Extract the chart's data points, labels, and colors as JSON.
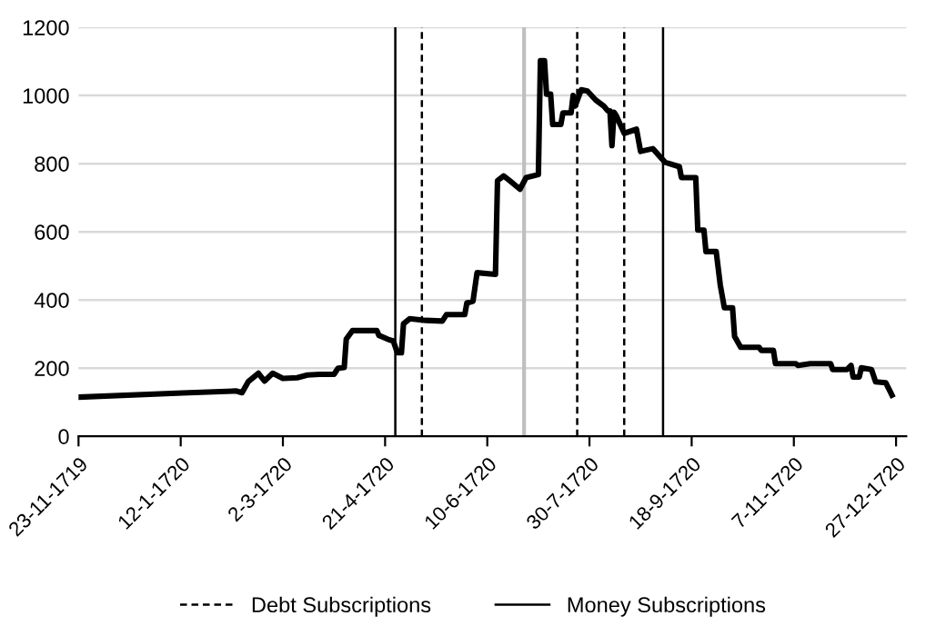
{
  "chart_data": {
    "type": "line",
    "x": [
      "1719-11-23",
      "1720-01-13",
      "1720-02-08",
      "1720-02-11",
      "1720-02-14",
      "1720-02-19",
      "1720-02-22",
      "1720-02-26",
      "1720-03-02",
      "1720-03-09",
      "1720-03-14",
      "1720-03-20",
      "1720-03-27",
      "1720-03-29",
      "1720-04-01",
      "1720-04-02",
      "1720-04-05",
      "1720-04-17",
      "1720-04-18",
      "1720-04-23",
      "1720-04-25",
      "1720-04-27",
      "1720-04-29",
      "1720-04-30",
      "1720-05-03",
      "1720-05-11",
      "1720-05-19",
      "1720-05-21",
      "1720-05-30",
      "1720-05-31",
      "1720-06-03",
      "1720-06-05",
      "1720-06-14",
      "1720-06-15",
      "1720-06-18",
      "1720-06-21",
      "1720-06-26",
      "1720-06-29",
      "1720-07-05",
      "1720-07-06",
      "1720-07-08",
      "1720-07-09",
      "1720-07-11",
      "1720-07-12",
      "1720-07-16",
      "1720-07-17",
      "1720-07-21",
      "1720-07-22",
      "1720-07-23",
      "1720-07-26",
      "1720-07-29",
      "1720-08-02",
      "1720-08-06",
      "1720-08-08",
      "1720-08-09",
      "1720-08-10",
      "1720-08-11",
      "1720-08-12",
      "1720-08-16",
      "1720-08-22",
      "1720-08-24",
      "1720-08-30",
      "1720-09-05",
      "1720-09-12",
      "1720-09-13",
      "1720-09-20",
      "1720-09-21",
      "1720-09-24",
      "1720-09-25",
      "1720-09-30",
      "1720-10-02",
      "1720-10-04",
      "1720-10-08",
      "1720-10-09",
      "1720-10-12",
      "1720-10-21",
      "1720-10-22",
      "1720-10-28",
      "1720-10-29",
      "1720-11-08",
      "1720-11-09",
      "1720-11-15",
      "1720-11-25",
      "1720-11-26",
      "1720-12-03",
      "1720-12-05",
      "1720-12-06",
      "1720-12-09",
      "1720-12-10",
      "1720-12-15",
      "1720-12-17",
      "1720-12-22",
      "1720-12-25"
    ],
    "series": [
      {
        "color": "#000000",
        "values": [
          115,
          127,
          133,
          128,
          160,
          185,
          162,
          185,
          170,
          172,
          180,
          182,
          182,
          200,
          202,
          285,
          310,
          310,
          296,
          283,
          280,
          245,
          245,
          330,
          345,
          340,
          338,
          357,
          357,
          391,
          396,
          480,
          475,
          750,
          764,
          750,
          725,
          759,
          768,
          1102,
          1102,
          1004,
          1004,
          915,
          915,
          949,
          949,
          1000,
          969,
          1017,
          1013,
          987,
          969,
          955,
          955,
          853,
          951,
          942,
          889,
          901,
          836,
          844,
          804,
          791,
          759,
          759,
          605,
          605,
          542,
          542,
          444,
          377,
          377,
          293,
          261,
          261,
          252,
          252,
          213,
          213,
          208,
          213,
          213,
          196,
          196,
          208,
          174,
          174,
          201,
          196,
          160,
          157,
          121
        ]
      }
    ],
    "xlim": [
      "1719-11-23",
      "1721-01-01"
    ],
    "xticks": [
      {
        "value": "1719-11-23",
        "label": "23-11-1719"
      },
      {
        "value": "1720-01-12",
        "label": "12-1-1720"
      },
      {
        "value": "1720-03-02",
        "label": "2-3-1720"
      },
      {
        "value": "1720-04-21",
        "label": "21-4-1720"
      },
      {
        "value": "1720-06-10",
        "label": "10-6-1720"
      },
      {
        "value": "1720-07-30",
        "label": "30-7-1720"
      },
      {
        "value": "1720-09-18",
        "label": "18-9-1720"
      },
      {
        "value": "1720-11-07",
        "label": "7-11-1720"
      },
      {
        "value": "1720-12-27",
        "label": "27-12-1720"
      }
    ],
    "ylim": [
      0,
      1200
    ],
    "yticks": [
      0,
      200,
      400,
      600,
      800,
      1000,
      1200
    ],
    "grid": "y",
    "legend": "bottom",
    "line_style": "solid",
    "marker": "none",
    "ref_lines": [
      {
        "axis": "x",
        "value": "1720-04-26",
        "label": "Money Subscriptions",
        "color": "#000000",
        "line_style": "solid"
      },
      {
        "axis": "x",
        "value": "1720-05-09",
        "label": "Debt Subscriptions",
        "color": "#000000",
        "line_style": "dashed"
      },
      {
        "axis": "x",
        "value": "1720-06-28",
        "color": "#bfbfbf",
        "line_style": "solid"
      },
      {
        "axis": "x",
        "value": "1720-07-24",
        "color": "#000000",
        "line_style": "dashed"
      },
      {
        "axis": "x",
        "value": "1720-08-16",
        "color": "#000000",
        "line_style": "dashed"
      },
      {
        "axis": "x",
        "value": "1720-09-04",
        "color": "#000000",
        "line_style": "solid"
      }
    ]
  }
}
